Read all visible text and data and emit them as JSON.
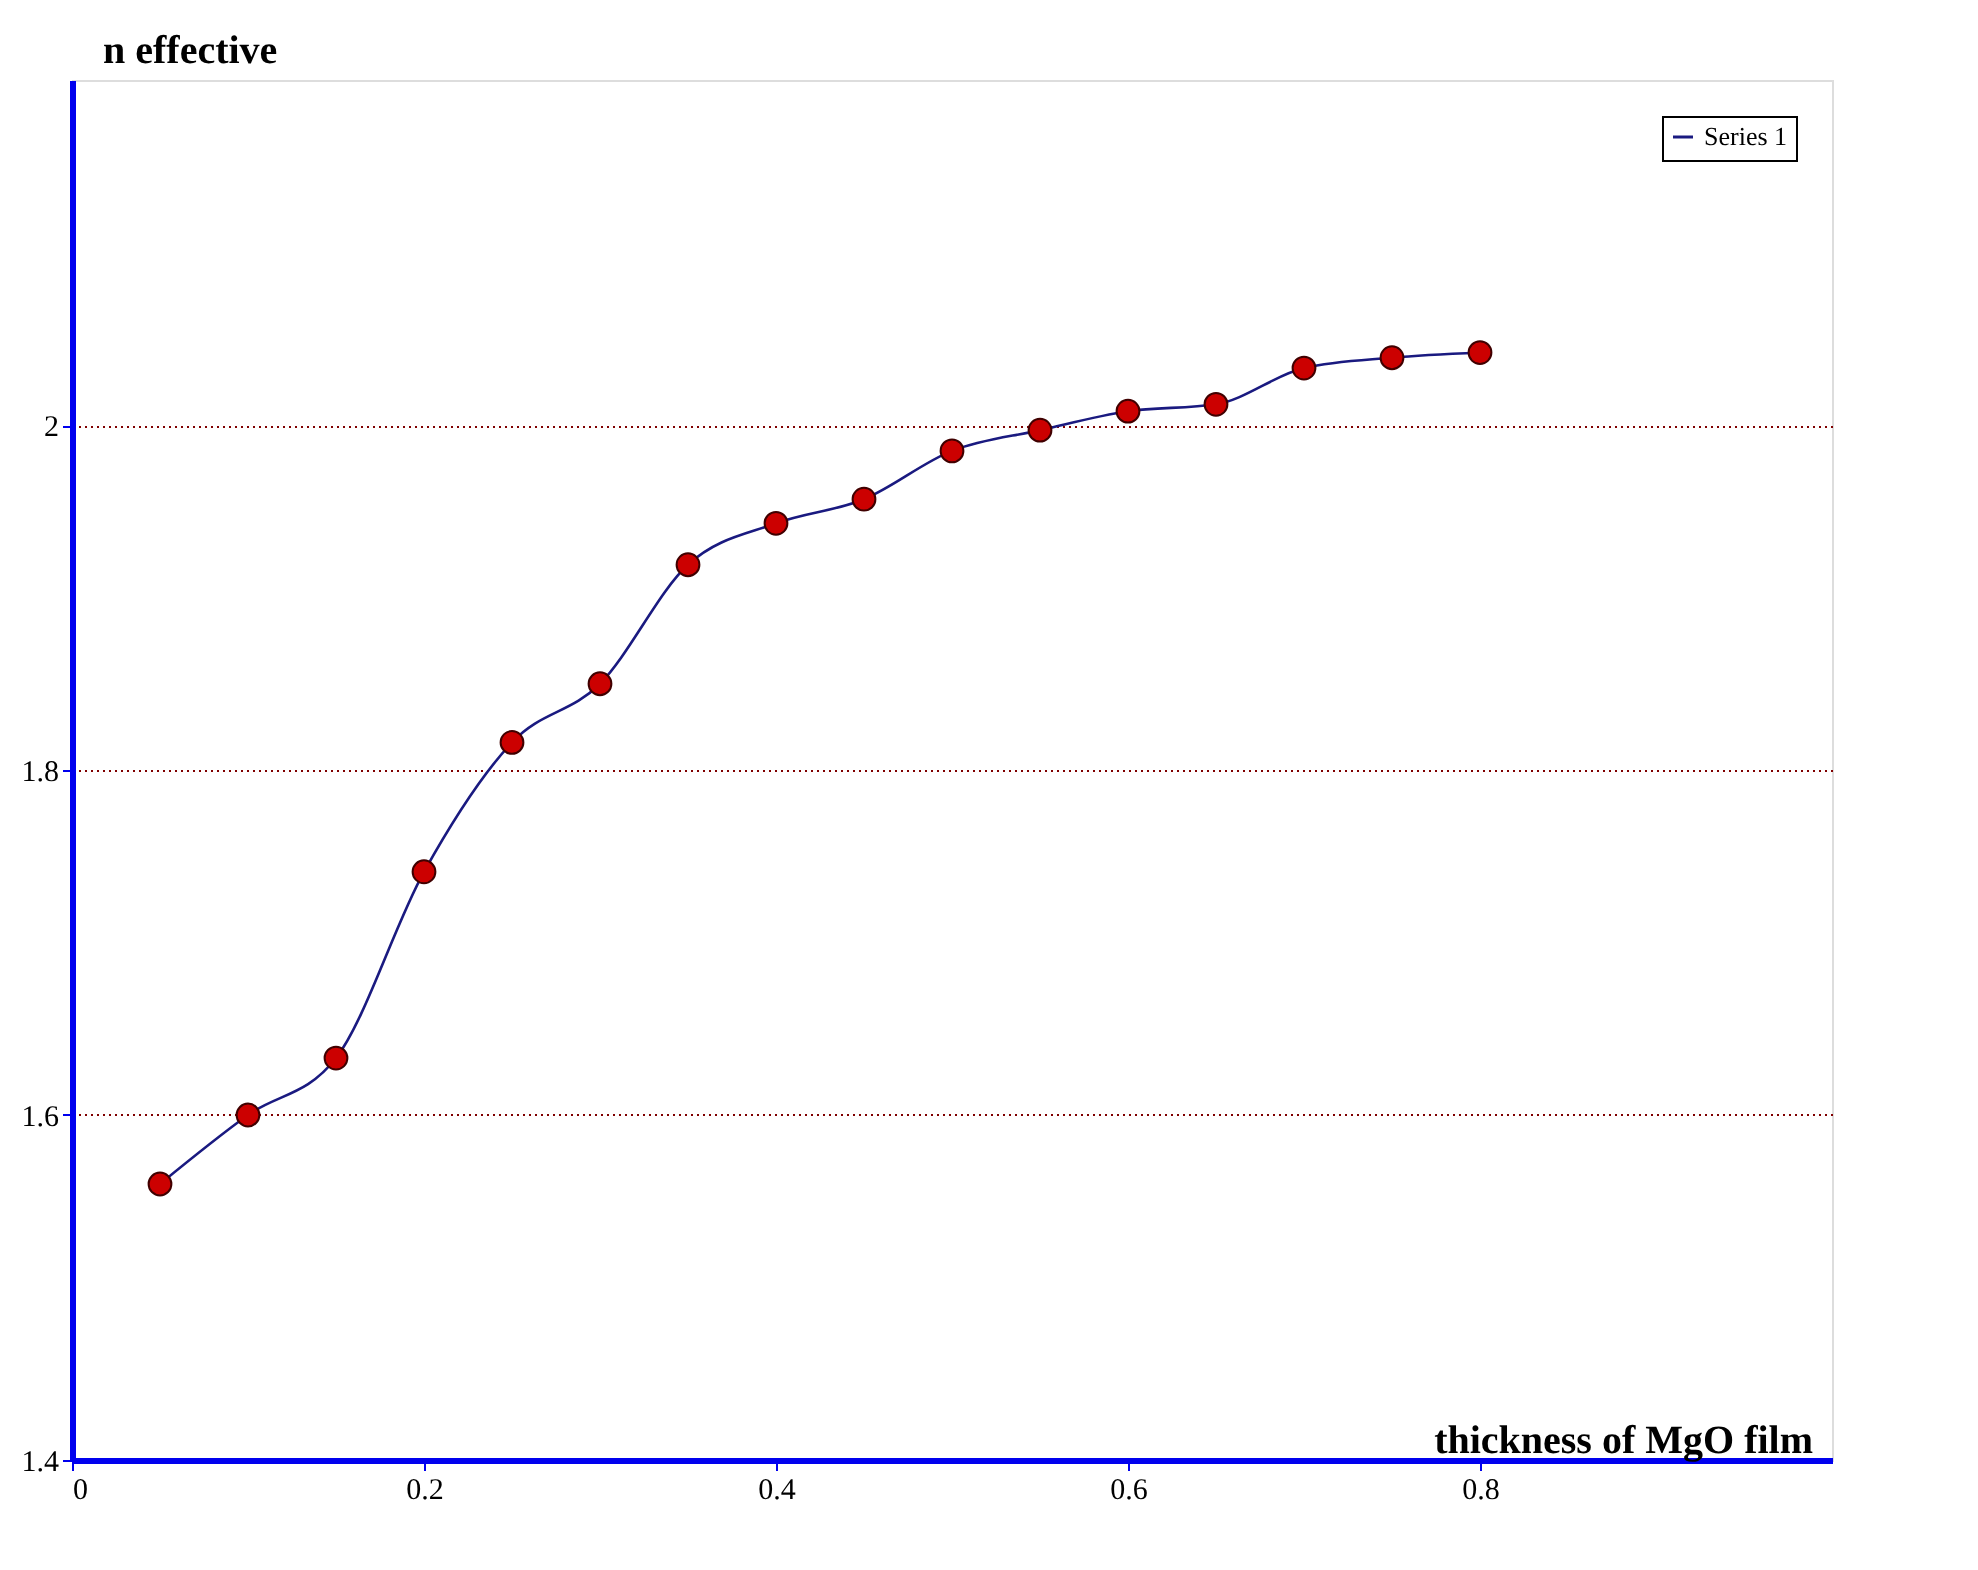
{
  "chart_data": {
    "type": "line",
    "xlabel": "thickness of MgO film",
    "ylabel": "n effective",
    "x": [
      0.05,
      0.1,
      0.15,
      0.2,
      0.25,
      0.3,
      0.35,
      0.4,
      0.45,
      0.5,
      0.55,
      0.6,
      0.65,
      0.7,
      0.75,
      0.8
    ],
    "series": [
      {
        "name": "Series 1",
        "color": "#cc0000",
        "values": [
          1.56,
          1.6,
          1.633,
          1.741,
          1.816,
          1.85,
          1.919,
          1.943,
          1.957,
          1.985,
          1.997,
          2.008,
          2.012,
          2.033,
          2.039,
          2.042
        ]
      }
    ],
    "xlim": [
      0,
      1.0
    ],
    "xticks": [
      0,
      0.2,
      0.4,
      0.6,
      0.8
    ],
    "ylim": [
      1.4,
      2.2
    ],
    "yticks": [
      1.4,
      1.6,
      1.8,
      2
    ],
    "grid": "y",
    "legend": "top right",
    "marker": "circle",
    "line_style": "solid"
  }
}
